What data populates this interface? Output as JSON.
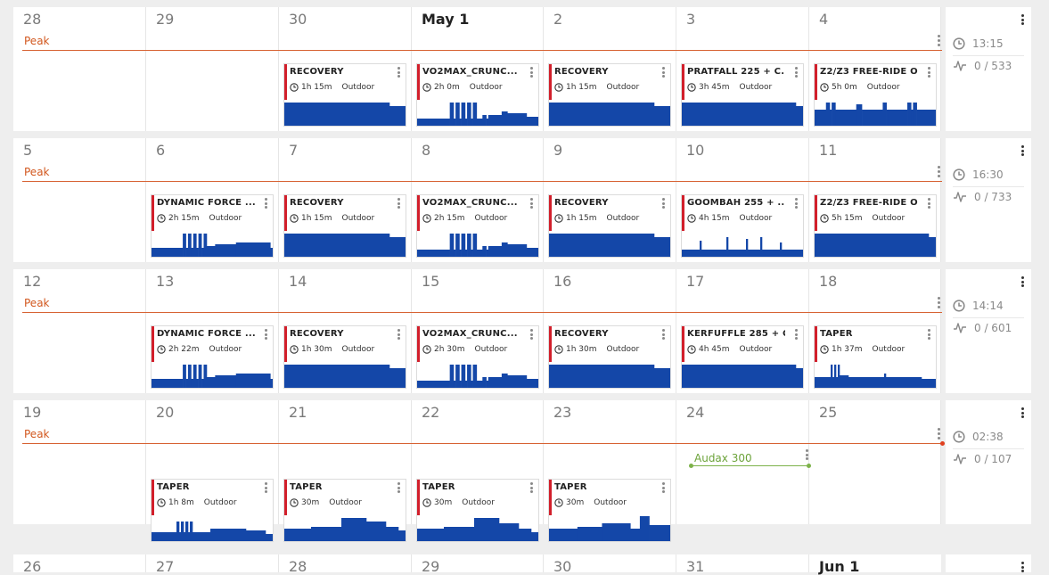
{
  "colors": {
    "peak": "#d76233",
    "workout_bar": "#d21f2b",
    "profile": "#1447a8",
    "event": "#7db24a"
  },
  "weeks": [
    {
      "days": [
        "28",
        "29",
        "30",
        "May 1",
        "2",
        "3",
        "4"
      ],
      "phase": "Peak",
      "summary": {
        "duration": "13:15",
        "tss": "0 / 533"
      },
      "workouts": [
        {
          "day": 2,
          "title": "RECOVERY",
          "duration": "1h 15m",
          "type": "Outdoor",
          "profile": "recovery"
        },
        {
          "day": 3,
          "title": "VO2MAX_CRUNC...",
          "duration": "2h 0m",
          "type": "Outdoor",
          "profile": "vo2"
        },
        {
          "day": 4,
          "title": "RECOVERY",
          "duration": "1h 15m",
          "type": "Outdoor",
          "profile": "recovery"
        },
        {
          "day": 5,
          "title": "PRATFALL 225 + C...",
          "duration": "3h 45m",
          "type": "Outdoor",
          "profile": "flat"
        },
        {
          "day": 6,
          "title": "Z2/Z3 FREE-RIDE O...",
          "duration": "5h 0m",
          "type": "Outdoor",
          "profile": "z2"
        }
      ]
    },
    {
      "days": [
        "5",
        "6",
        "7",
        "8",
        "9",
        "10",
        "11"
      ],
      "phase": "Peak",
      "summary": {
        "duration": "16:30",
        "tss": "0 / 733"
      },
      "workouts": [
        {
          "day": 1,
          "title": "DYNAMIC FORCE ...",
          "duration": "2h 15m",
          "type": "Outdoor",
          "profile": "force"
        },
        {
          "day": 2,
          "title": "RECOVERY",
          "duration": "1h 15m",
          "type": "Outdoor",
          "profile": "recovery"
        },
        {
          "day": 3,
          "title": "VO2MAX_CRUNC...",
          "duration": "2h 15m",
          "type": "Outdoor",
          "profile": "vo2"
        },
        {
          "day": 4,
          "title": "RECOVERY",
          "duration": "1h 15m",
          "type": "Outdoor",
          "profile": "recovery"
        },
        {
          "day": 5,
          "title": "GOOMBAH 255 + ...",
          "duration": "4h 15m",
          "type": "Outdoor",
          "profile": "spiky"
        },
        {
          "day": 6,
          "title": "Z2/Z3 FREE-RIDE O...",
          "duration": "5h 15m",
          "type": "Outdoor",
          "profile": "flat"
        }
      ]
    },
    {
      "days": [
        "12",
        "13",
        "14",
        "15",
        "16",
        "17",
        "18"
      ],
      "phase": "Peak",
      "summary": {
        "duration": "14:14",
        "tss": "0 / 601"
      },
      "workouts": [
        {
          "day": 1,
          "title": "DYNAMIC FORCE ...",
          "duration": "2h 22m",
          "type": "Outdoor",
          "profile": "force"
        },
        {
          "day": 2,
          "title": "RECOVERY",
          "duration": "1h 30m",
          "type": "Outdoor",
          "profile": "recovery"
        },
        {
          "day": 3,
          "title": "VO2MAX_CRUNC...",
          "duration": "2h 30m",
          "type": "Outdoor",
          "profile": "vo2"
        },
        {
          "day": 4,
          "title": "RECOVERY",
          "duration": "1h 30m",
          "type": "Outdoor",
          "profile": "recovery"
        },
        {
          "day": 5,
          "title": "KERFUFFLE 285 + C...",
          "duration": "4h 45m",
          "type": "Outdoor",
          "profile": "flat"
        },
        {
          "day": 6,
          "title": "TAPER",
          "duration": "1h 37m",
          "type": "Outdoor",
          "profile": "taperlong"
        }
      ]
    },
    {
      "days": [
        "19",
        "20",
        "21",
        "22",
        "23",
        "24",
        "25"
      ],
      "phase": "Peak",
      "summary": {
        "duration": "02:38",
        "tss": "0 / 107"
      },
      "event": {
        "day": 5,
        "label": "Audax 300"
      },
      "workouts": [
        {
          "day": 1,
          "title": "TAPER",
          "duration": "1h 8m",
          "type": "Outdoor",
          "profile": "taper1"
        },
        {
          "day": 2,
          "title": "TAPER",
          "duration": "30m",
          "type": "Outdoor",
          "profile": "taper2"
        },
        {
          "day": 3,
          "title": "TAPER",
          "duration": "30m",
          "type": "Outdoor",
          "profile": "taper3"
        },
        {
          "day": 4,
          "title": "TAPER",
          "duration": "30m",
          "type": "Outdoor",
          "profile": "taper4"
        }
      ]
    }
  ],
  "partial_week": {
    "days": [
      "26",
      "27",
      "28",
      "29",
      "30",
      "31",
      "Jun 1"
    ]
  }
}
